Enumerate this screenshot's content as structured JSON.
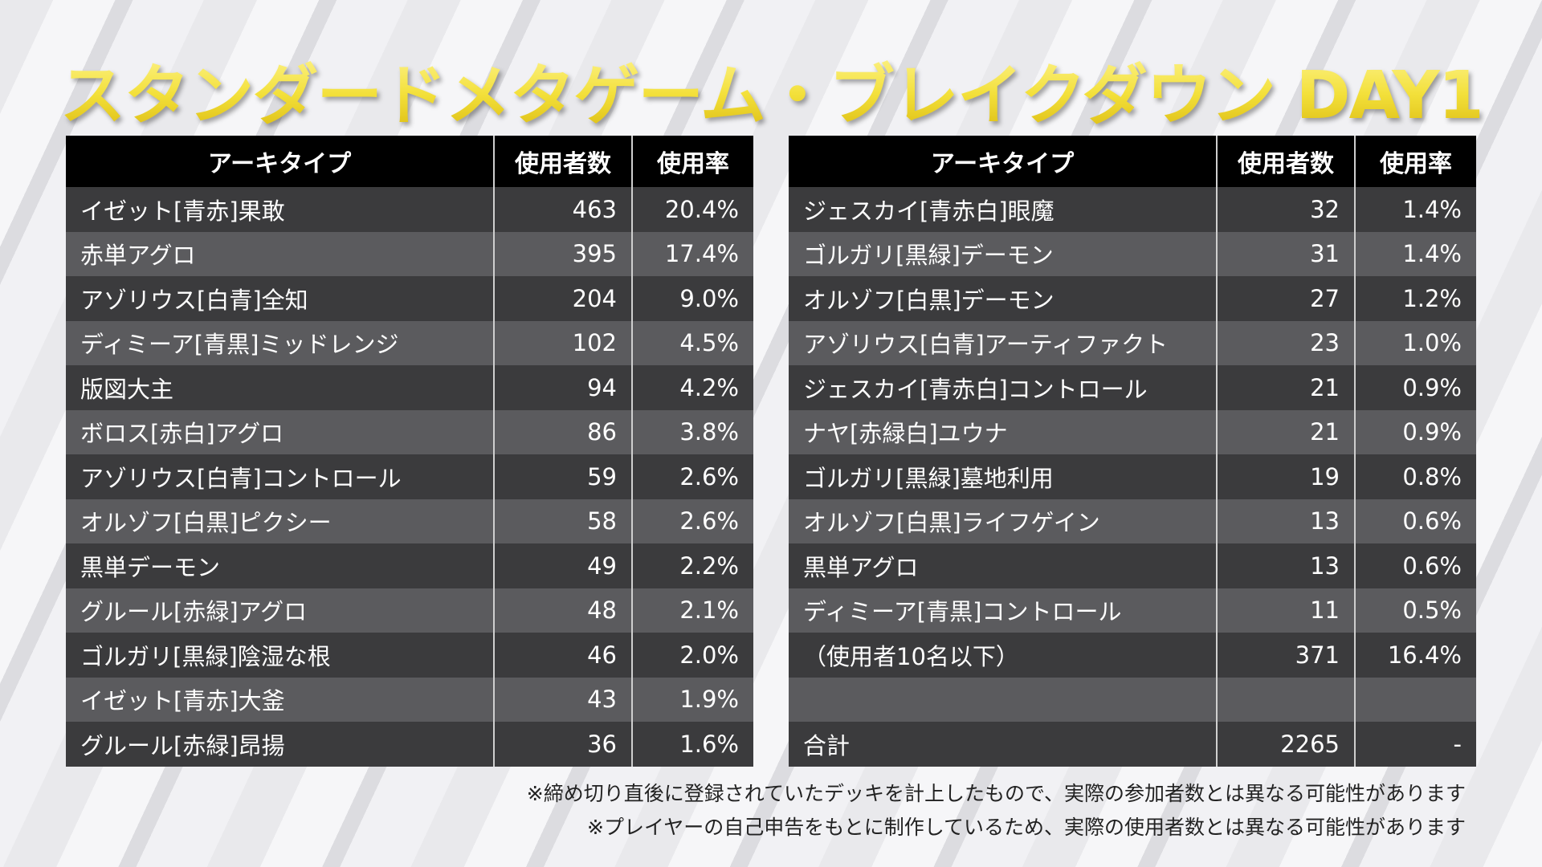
{
  "title": "スタンダードメタゲーム・ブレイクダウン DAY1",
  "tables": [
    {
      "header": [
        "アーキタイプ",
        "使用者数",
        "使用率"
      ],
      "rows": [
        [
          "イゼット[青赤]果敢",
          "463",
          "20.4%"
        ],
        [
          "赤単アグロ",
          "395",
          "17.4%"
        ],
        [
          "アゾリウス[白青]全知",
          "204",
          "9.0%"
        ],
        [
          "ディミーア[青黒]ミッドレンジ",
          "102",
          "4.5%"
        ],
        [
          "版図大主",
          "94",
          "4.2%"
        ],
        [
          "ボロス[赤白]アグロ",
          "86",
          "3.8%"
        ],
        [
          "アゾリウス[白青]コントロール",
          "59",
          "2.6%"
        ],
        [
          "オルゾフ[白黒]ピクシー",
          "58",
          "2.6%"
        ],
        [
          "黒単デーモン",
          "49",
          "2.2%"
        ],
        [
          "グルール[赤緑]アグロ",
          "48",
          "2.1%"
        ],
        [
          "ゴルガリ[黒緑]陰湿な根",
          "46",
          "2.0%"
        ],
        [
          "イゼット[青赤]大釜",
          "43",
          "1.9%"
        ],
        [
          "グルール[赤緑]昂揚",
          "36",
          "1.6%"
        ]
      ]
    },
    {
      "header": [
        "アーキタイプ",
        "使用者数",
        "使用率"
      ],
      "rows": [
        [
          "ジェスカイ[青赤白]眼魔",
          "32",
          "1.4%"
        ],
        [
          "ゴルガリ[黒緑]デーモン",
          "31",
          "1.4%"
        ],
        [
          "オルゾフ[白黒]デーモン",
          "27",
          "1.2%"
        ],
        [
          "アゾリウス[白青]アーティファクト",
          "23",
          "1.0%"
        ],
        [
          "ジェスカイ[青赤白]コントロール",
          "21",
          "0.9%"
        ],
        [
          "ナヤ[赤緑白]ユウナ",
          "21",
          "0.9%"
        ],
        [
          "ゴルガリ[黒緑]墓地利用",
          "19",
          "0.8%"
        ],
        [
          "オルゾフ[白黒]ライフゲイン",
          "13",
          "0.6%"
        ],
        [
          "黒単アグロ",
          "13",
          "0.6%"
        ],
        [
          "ディミーア[青黒]コントロール",
          "11",
          "0.5%"
        ],
        [
          "（使用者10名以下）",
          "371",
          "16.4%"
        ]
      ],
      "total": [
        "合計",
        "2265",
        "-"
      ]
    }
  ],
  "notes": [
    "※締め切り直後に登録されていたデッキを計上したもので、実際の参加者数とは異なる可能性があります",
    "※プレイヤーの自己申告をもとに制作しているため、実際の使用者数とは異なる可能性があります"
  ]
}
